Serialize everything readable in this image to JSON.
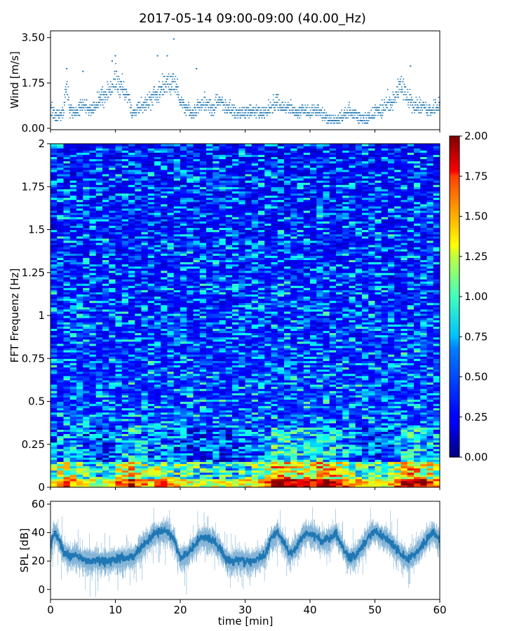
{
  "title": "2017-05-14 09:00-09:00 (40.00_Hz)",
  "chart_data": [
    {
      "type": "scatter",
      "panel": "wind",
      "ylabel": "Wind [m/s]",
      "ylim": [
        0,
        3.6
      ],
      "yticks": [
        0.0,
        1.75,
        3.5
      ],
      "ytick_labels": [
        "0.00",
        "1.75",
        "3.50"
      ],
      "xlim": [
        0,
        60
      ],
      "marker_color": "#1f77b4",
      "profile": {
        "t": [
          0,
          1,
          2,
          2.5,
          3,
          4,
          5,
          6,
          7,
          8,
          9,
          10,
          11,
          12,
          12.5,
          13,
          14,
          15,
          16,
          17,
          18,
          19,
          20,
          21,
          22,
          23,
          24,
          25,
          26,
          27,
          28,
          29,
          30,
          31,
          32,
          33,
          34,
          35,
          36,
          37,
          38,
          39,
          40,
          41,
          42,
          43,
          44,
          45,
          46,
          47,
          48,
          49,
          50,
          51,
          52,
          53,
          54,
          55,
          56,
          57,
          58,
          59,
          60
        ],
        "v": [
          0.6,
          0.4,
          0.5,
          1.5,
          0.6,
          0.5,
          0.8,
          0.6,
          0.8,
          0.9,
          1.2,
          1.5,
          1.3,
          1.1,
          0.5,
          0.5,
          0.7,
          0.8,
          1.0,
          1.2,
          1.4,
          1.5,
          0.9,
          0.6,
          0.5,
          0.7,
          0.8,
          0.6,
          0.9,
          0.7,
          0.6,
          0.5,
          0.5,
          0.6,
          0.5,
          0.5,
          0.7,
          0.8,
          0.6,
          0.7,
          0.5,
          0.6,
          0.5,
          0.6,
          0.4,
          0.3,
          0.3,
          0.4,
          0.5,
          0.4,
          0.3,
          0.3,
          0.5,
          0.6,
          0.8,
          0.9,
          1.4,
          1.0,
          0.7,
          0.7,
          0.6,
          0.6,
          0.8
        ]
      },
      "peak_points": [
        [
          9.5,
          2.6
        ],
        [
          10,
          2.8
        ],
        [
          16.5,
          2.8
        ],
        [
          18,
          2.8
        ],
        [
          19,
          3.45
        ],
        [
          22.5,
          2.3
        ],
        [
          55.5,
          2.4
        ],
        [
          2.5,
          2.3
        ],
        [
          5,
          2.2
        ]
      ]
    },
    {
      "type": "heatmap",
      "panel": "spectrogram",
      "ylabel": "FFT Frequenz [Hz]",
      "ylim": [
        0,
        2
      ],
      "yticks": [
        0,
        0.25,
        0.5,
        0.75,
        1,
        1.25,
        1.5,
        1.75,
        2
      ],
      "ytick_labels": [
        "0",
        "0.25",
        "0.5",
        "0.75",
        "1",
        "1.25",
        "1.5",
        "1.75",
        "2"
      ],
      "xlim": [
        0,
        60
      ],
      "colormap": "jet",
      "colorbar": {
        "range": [
          0.0,
          2.0
        ],
        "ticks": [
          0.0,
          0.25,
          0.5,
          0.75,
          1.0,
          1.25,
          1.5,
          1.75,
          2.0
        ],
        "tick_labels": [
          "0.00",
          "0.25",
          "0.50",
          "0.75",
          "1.00",
          "1.25",
          "1.50",
          "1.75",
          "2.00"
        ]
      },
      "low_freq_energy": {
        "t": [
          0,
          2.5,
          5,
          7.5,
          10,
          12.5,
          15,
          17.5,
          20,
          22.5,
          25,
          27.5,
          30,
          32.5,
          35,
          37.5,
          40,
          42.5,
          45,
          47.5,
          50,
          52.5,
          55,
          57.5,
          60
        ],
        "v": [
          0.8,
          1.2,
          0.9,
          0.7,
          1.0,
          1.3,
          0.9,
          1.1,
          0.8,
          0.8,
          0.7,
          0.7,
          0.8,
          0.9,
          1.6,
          1.4,
          1.3,
          1.5,
          1.2,
          0.9,
          0.8,
          0.9,
          1.5,
          1.3,
          1.0
        ]
      }
    },
    {
      "type": "line",
      "panel": "spl",
      "ylabel": "SPL [dB]",
      "xlabel": "time [min]",
      "ylim": [
        -7,
        62
      ],
      "yticks": [
        0,
        20,
        40,
        60
      ],
      "ytick_labels": [
        "0",
        "20",
        "40",
        "60"
      ],
      "xlim": [
        0,
        60
      ],
      "xticks": [
        0,
        10,
        20,
        30,
        40,
        50,
        60
      ],
      "xtick_labels": [
        "0",
        "10",
        "20",
        "30",
        "40",
        "50",
        "60"
      ],
      "line_color": "#1f77b4",
      "profile": {
        "t": [
          0,
          0.5,
          1,
          2,
          3,
          4,
          5,
          6,
          7,
          8,
          9,
          10,
          11,
          12,
          13,
          14,
          15,
          16,
          17,
          18,
          19,
          20,
          21,
          22,
          23,
          24,
          25,
          26,
          27,
          28,
          29,
          30,
          31,
          32,
          33,
          34,
          35,
          36,
          37,
          38,
          39,
          40,
          41,
          42,
          43,
          44,
          45,
          46,
          47,
          48,
          49,
          50,
          51,
          52,
          53,
          54,
          55,
          56,
          57,
          58,
          59,
          60
        ],
        "v": [
          30,
          40,
          38,
          27,
          23,
          24,
          21,
          20,
          21,
          20,
          20,
          21,
          22,
          22,
          24,
          30,
          34,
          39,
          40,
          41,
          35,
          22,
          24,
          30,
          36,
          37,
          34,
          30,
          22,
          19,
          21,
          20,
          20,
          22,
          24,
          36,
          40,
          32,
          25,
          30,
          38,
          40,
          37,
          34,
          36,
          40,
          30,
          22,
          24,
          30,
          37,
          41,
          38,
          35,
          30,
          25,
          21,
          24,
          29,
          35,
          40,
          34
        ]
      }
    }
  ]
}
